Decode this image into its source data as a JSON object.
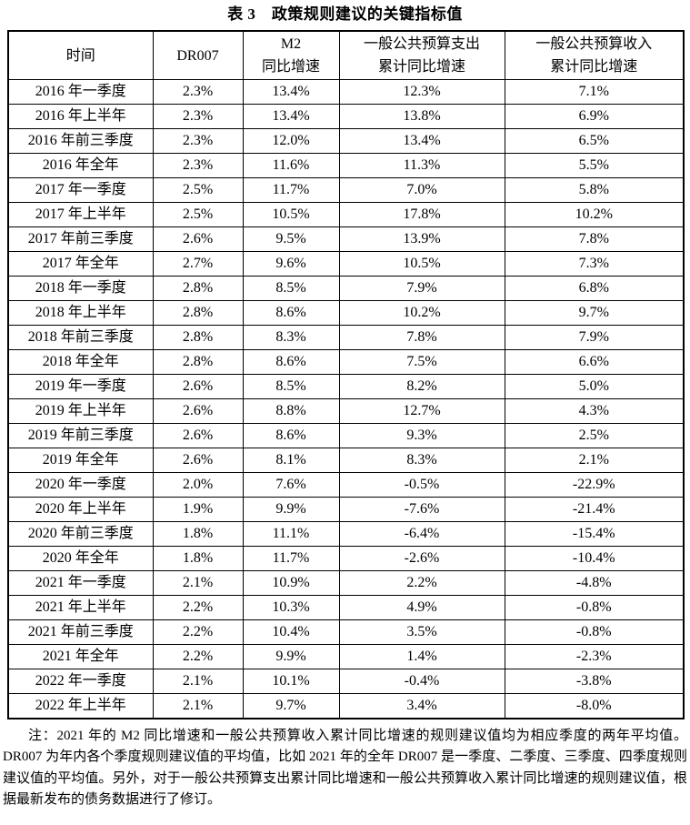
{
  "title": "表 3　政策规则建议的关键指标值",
  "table": {
    "headers": [
      "时间",
      "DR007",
      "M2\n同比增速",
      "一般公共预算支出\n累计同比增速",
      "一般公共预算收入\n累计同比增速"
    ],
    "rows": [
      [
        "2016 年一季度",
        "2.3%",
        "13.4%",
        "12.3%",
        "7.1%"
      ],
      [
        "2016 年上半年",
        "2.3%",
        "13.4%",
        "13.8%",
        "6.9%"
      ],
      [
        "2016 年前三季度",
        "2.3%",
        "12.0%",
        "13.4%",
        "6.5%"
      ],
      [
        "2016 年全年",
        "2.3%",
        "11.6%",
        "11.3%",
        "5.5%"
      ],
      [
        "2017 年一季度",
        "2.5%",
        "11.7%",
        "7.0%",
        "5.8%"
      ],
      [
        "2017 年上半年",
        "2.5%",
        "10.5%",
        "17.8%",
        "10.2%"
      ],
      [
        "2017 年前三季度",
        "2.6%",
        "9.5%",
        "13.9%",
        "7.8%"
      ],
      [
        "2017 年全年",
        "2.7%",
        "9.6%",
        "10.5%",
        "7.3%"
      ],
      [
        "2018 年一季度",
        "2.8%",
        "8.5%",
        "7.9%",
        "6.8%"
      ],
      [
        "2018 年上半年",
        "2.8%",
        "8.6%",
        "10.2%",
        "9.7%"
      ],
      [
        "2018 年前三季度",
        "2.8%",
        "8.3%",
        "7.8%",
        "7.9%"
      ],
      [
        "2018 年全年",
        "2.8%",
        "8.6%",
        "7.5%",
        "6.6%"
      ],
      [
        "2019 年一季度",
        "2.6%",
        "8.5%",
        "8.2%",
        "5.0%"
      ],
      [
        "2019 年上半年",
        "2.6%",
        "8.8%",
        "12.7%",
        "4.3%"
      ],
      [
        "2019 年前三季度",
        "2.6%",
        "8.6%",
        "9.3%",
        "2.5%"
      ],
      [
        "2019 年全年",
        "2.6%",
        "8.1%",
        "8.3%",
        "2.1%"
      ],
      [
        "2020 年一季度",
        "2.0%",
        "7.6%",
        "-0.5%",
        "-22.9%"
      ],
      [
        "2020 年上半年",
        "1.9%",
        "9.9%",
        "-7.6%",
        "-21.4%"
      ],
      [
        "2020 年前三季度",
        "1.8%",
        "11.1%",
        "-6.4%",
        "-15.4%"
      ],
      [
        "2020 年全年",
        "1.8%",
        "11.7%",
        "-2.6%",
        "-10.4%"
      ],
      [
        "2021 年一季度",
        "2.1%",
        "10.9%",
        "2.2%",
        "-4.8%"
      ],
      [
        "2021 年上半年",
        "2.2%",
        "10.3%",
        "4.9%",
        "-0.8%"
      ],
      [
        "2021 年前三季度",
        "2.2%",
        "10.4%",
        "3.5%",
        "-0.8%"
      ],
      [
        "2021 年全年",
        "2.2%",
        "9.9%",
        "1.4%",
        "-2.3%"
      ],
      [
        "2022 年一季度",
        "2.1%",
        "10.1%",
        "-0.4%",
        "-3.8%"
      ],
      [
        "2022 年上半年",
        "2.1%",
        "9.7%",
        "3.4%",
        "-8.0%"
      ]
    ]
  },
  "note": "注：2021 年的 M2 同比增速和一般公共预算收入累计同比增速的规则建议值均为相应季度的两年平均值。DR007 为年内各个季度规则建议值的平均值，比如 2021 年的全年 DR007 是一季度、二季度、三季度、四季度规则建议值的平均值。另外，对于一般公共预算支出累计同比增速和一般公共预算收入累计同比增速的规则建议值，根据最新发布的债务数据进行了修订。"
}
